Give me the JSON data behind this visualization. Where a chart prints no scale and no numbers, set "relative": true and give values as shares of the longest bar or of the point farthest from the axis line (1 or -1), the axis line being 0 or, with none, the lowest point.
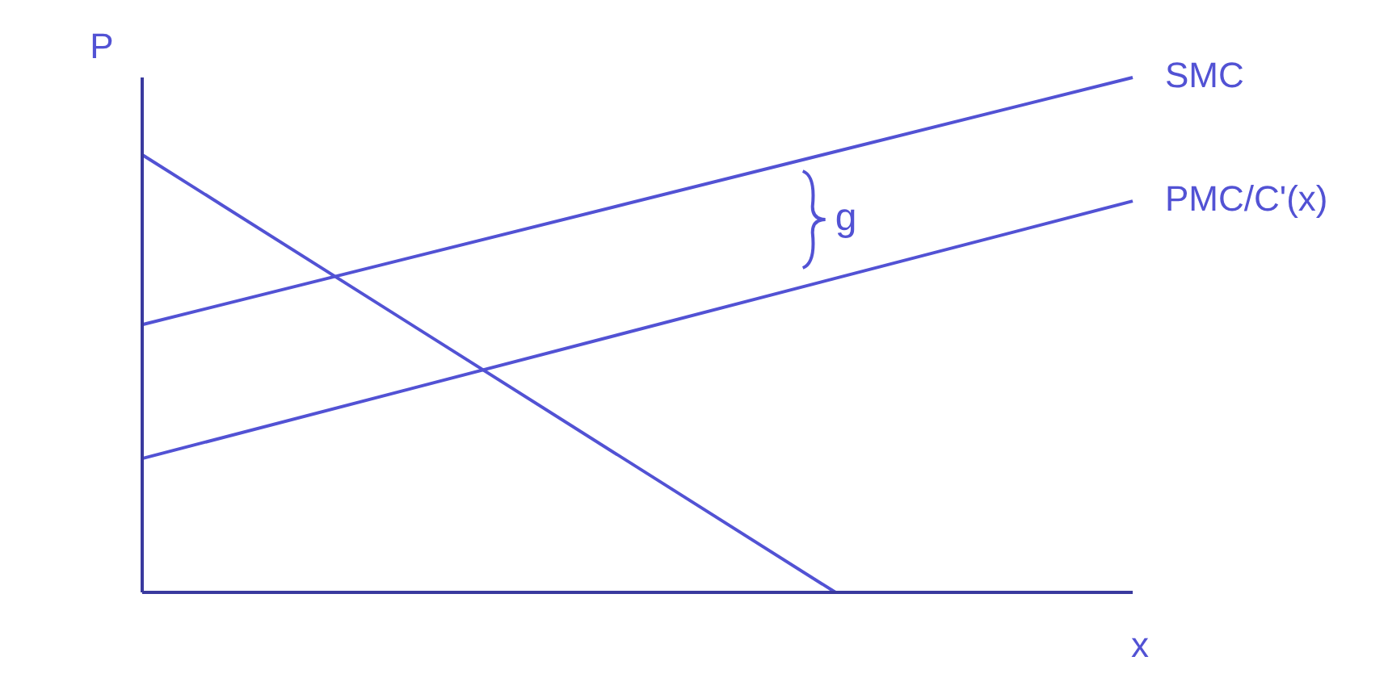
{
  "chart_data": {
    "type": "line",
    "relative": true,
    "xlabel": "x",
    "ylabel": "P",
    "categories": [
      null,
      null,
      null,
      null,
      null,
      null,
      null,
      null,
      null,
      null,
      null
    ],
    "series": [
      {
        "color": "#5252d4",
        "values": [
          0.85,
          null,
          null,
          null,
          null,
          null,
          null,
          0,
          null,
          null,
          null
        ]
      },
      {
        "name": "SMC",
        "color": "#5252d4",
        "values": [
          0.52,
          null,
          null,
          null,
          null,
          null,
          null,
          null,
          null,
          null,
          1
        ]
      },
      {
        "name": "PMC/C'(x)",
        "color": "#5252d4",
        "values": [
          0.26,
          null,
          null,
          null,
          null,
          null,
          null,
          null,
          null,
          null,
          0.76
        ]
      }
    ],
    "annotations": [
      "g"
    ]
  }
}
